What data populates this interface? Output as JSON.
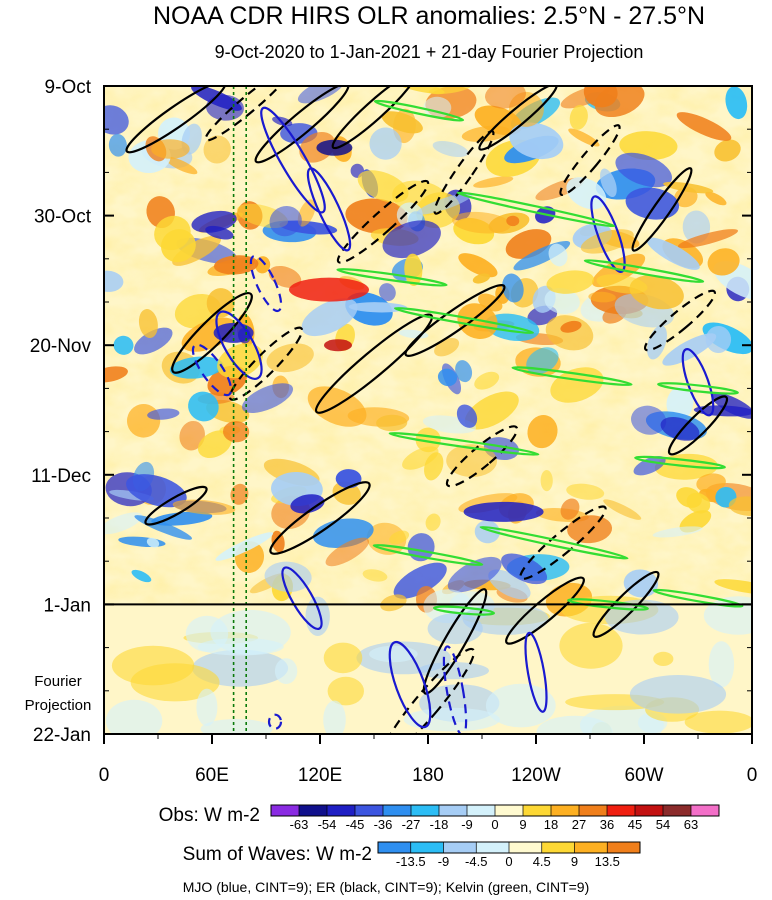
{
  "chart_data": {
    "type": "heatmap",
    "title": "NOAA CDR HIRS OLR anomalies: 2.5°N - 27.5°N",
    "subtitle": "9-Oct-2020 to 1-Jan-2021 + 21-day Fourier Projection",
    "y_axis": {
      "ticks": [
        "9-Oct",
        "30-Oct",
        "20-Nov",
        "11-Dec",
        "1-Jan",
        "22-Jan"
      ],
      "tick_day_offsets": [
        0,
        21,
        42,
        63,
        84,
        105
      ],
      "range_days": [
        0,
        105
      ],
      "direction": "time increases downward"
    },
    "x_axis": {
      "ticks": [
        "0",
        "60E",
        "120E",
        "180",
        "120W",
        "60W",
        "0"
      ],
      "tick_longitudes_east": [
        0,
        60,
        120,
        180,
        240,
        300,
        360
      ],
      "range": [
        0,
        360
      ]
    },
    "projection_boundary_day": 84,
    "projection_label": [
      "Fourier",
      "Projection"
    ],
    "marker_longitudes_east": [
      72,
      79
    ],
    "obs_colorbar": {
      "label": "Obs: W m-2",
      "levels": [
        "-63",
        "-54",
        "-45",
        "-36",
        "-27",
        "-18",
        "-9",
        "0",
        "9",
        "18",
        "27",
        "36",
        "45",
        "54",
        "63"
      ],
      "colors": [
        "#8a2be2",
        "#10108c",
        "#1f1fc4",
        "#3c55e0",
        "#2f8ff0",
        "#2cbdf5",
        "#a6cdf5",
        "#d4f1fb",
        "#fffad0",
        "#fdd835",
        "#fdb022",
        "#f07f1b",
        "#f01f10",
        "#c31111",
        "#8b2b2b",
        "#f36fc8"
      ]
    },
    "wave_colorbar": {
      "label": "Sum of Waves: W m-2",
      "levels": [
        "-13.5",
        "-9",
        "-4.5",
        "0",
        "4.5",
        "9",
        "13.5"
      ],
      "colors": [
        "#2f8ff0",
        "#2cbdf5",
        "#a6cdf5",
        "#d4f1fb",
        "#fffad0",
        "#fdd835",
        "#fdb022",
        "#f07f1b"
      ]
    },
    "contour_legend": "MJO (blue, CINT=9); ER (black, CINT=9); Kelvin (green, CINT=9)",
    "series_colors": {
      "mjo": "#1a1ad0",
      "er": "#000000",
      "kelvin": "#33dd33"
    }
  }
}
